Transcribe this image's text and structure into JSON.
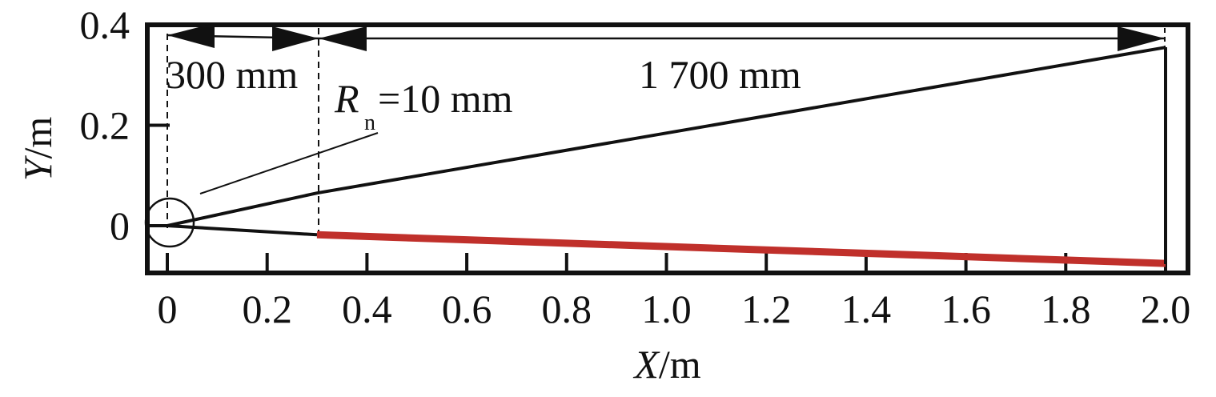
{
  "chart_data": {
    "type": "line",
    "xlabel": {
      "var": "X",
      "unit": "/m"
    },
    "ylabel": {
      "var": "Y",
      "unit": "/m"
    },
    "x_ticks": [
      "0",
      "0.2",
      "0.4",
      "0.6",
      "0.8",
      "1.0",
      "1.2",
      "1.4",
      "1.6",
      "1.8",
      "2.0"
    ],
    "y_ticks": [
      "0",
      "0.2",
      "0.4"
    ],
    "xlim": [
      -0.04,
      2.04
    ],
    "ylim": [
      -0.1,
      0.4
    ],
    "grid": false,
    "series": [
      {
        "color": "#111111",
        "points": [
          [
            0,
            0
          ],
          [
            0.3,
            0.065
          ],
          [
            2.0,
            0.355
          ]
        ]
      },
      {
        "color": "#111111",
        "points": [
          [
            0,
            0
          ],
          [
            0.3,
            -0.018
          ]
        ]
      },
      {
        "color": "#c0302b",
        "points": [
          [
            0.3,
            -0.018
          ],
          [
            2.0,
            -0.075
          ]
        ]
      }
    ],
    "annotations": {
      "dim_short": "300 mm",
      "dim_long": "1 700 mm",
      "radius_symbol": "R",
      "radius_sub": "n",
      "radius_value": "=10 mm"
    }
  }
}
